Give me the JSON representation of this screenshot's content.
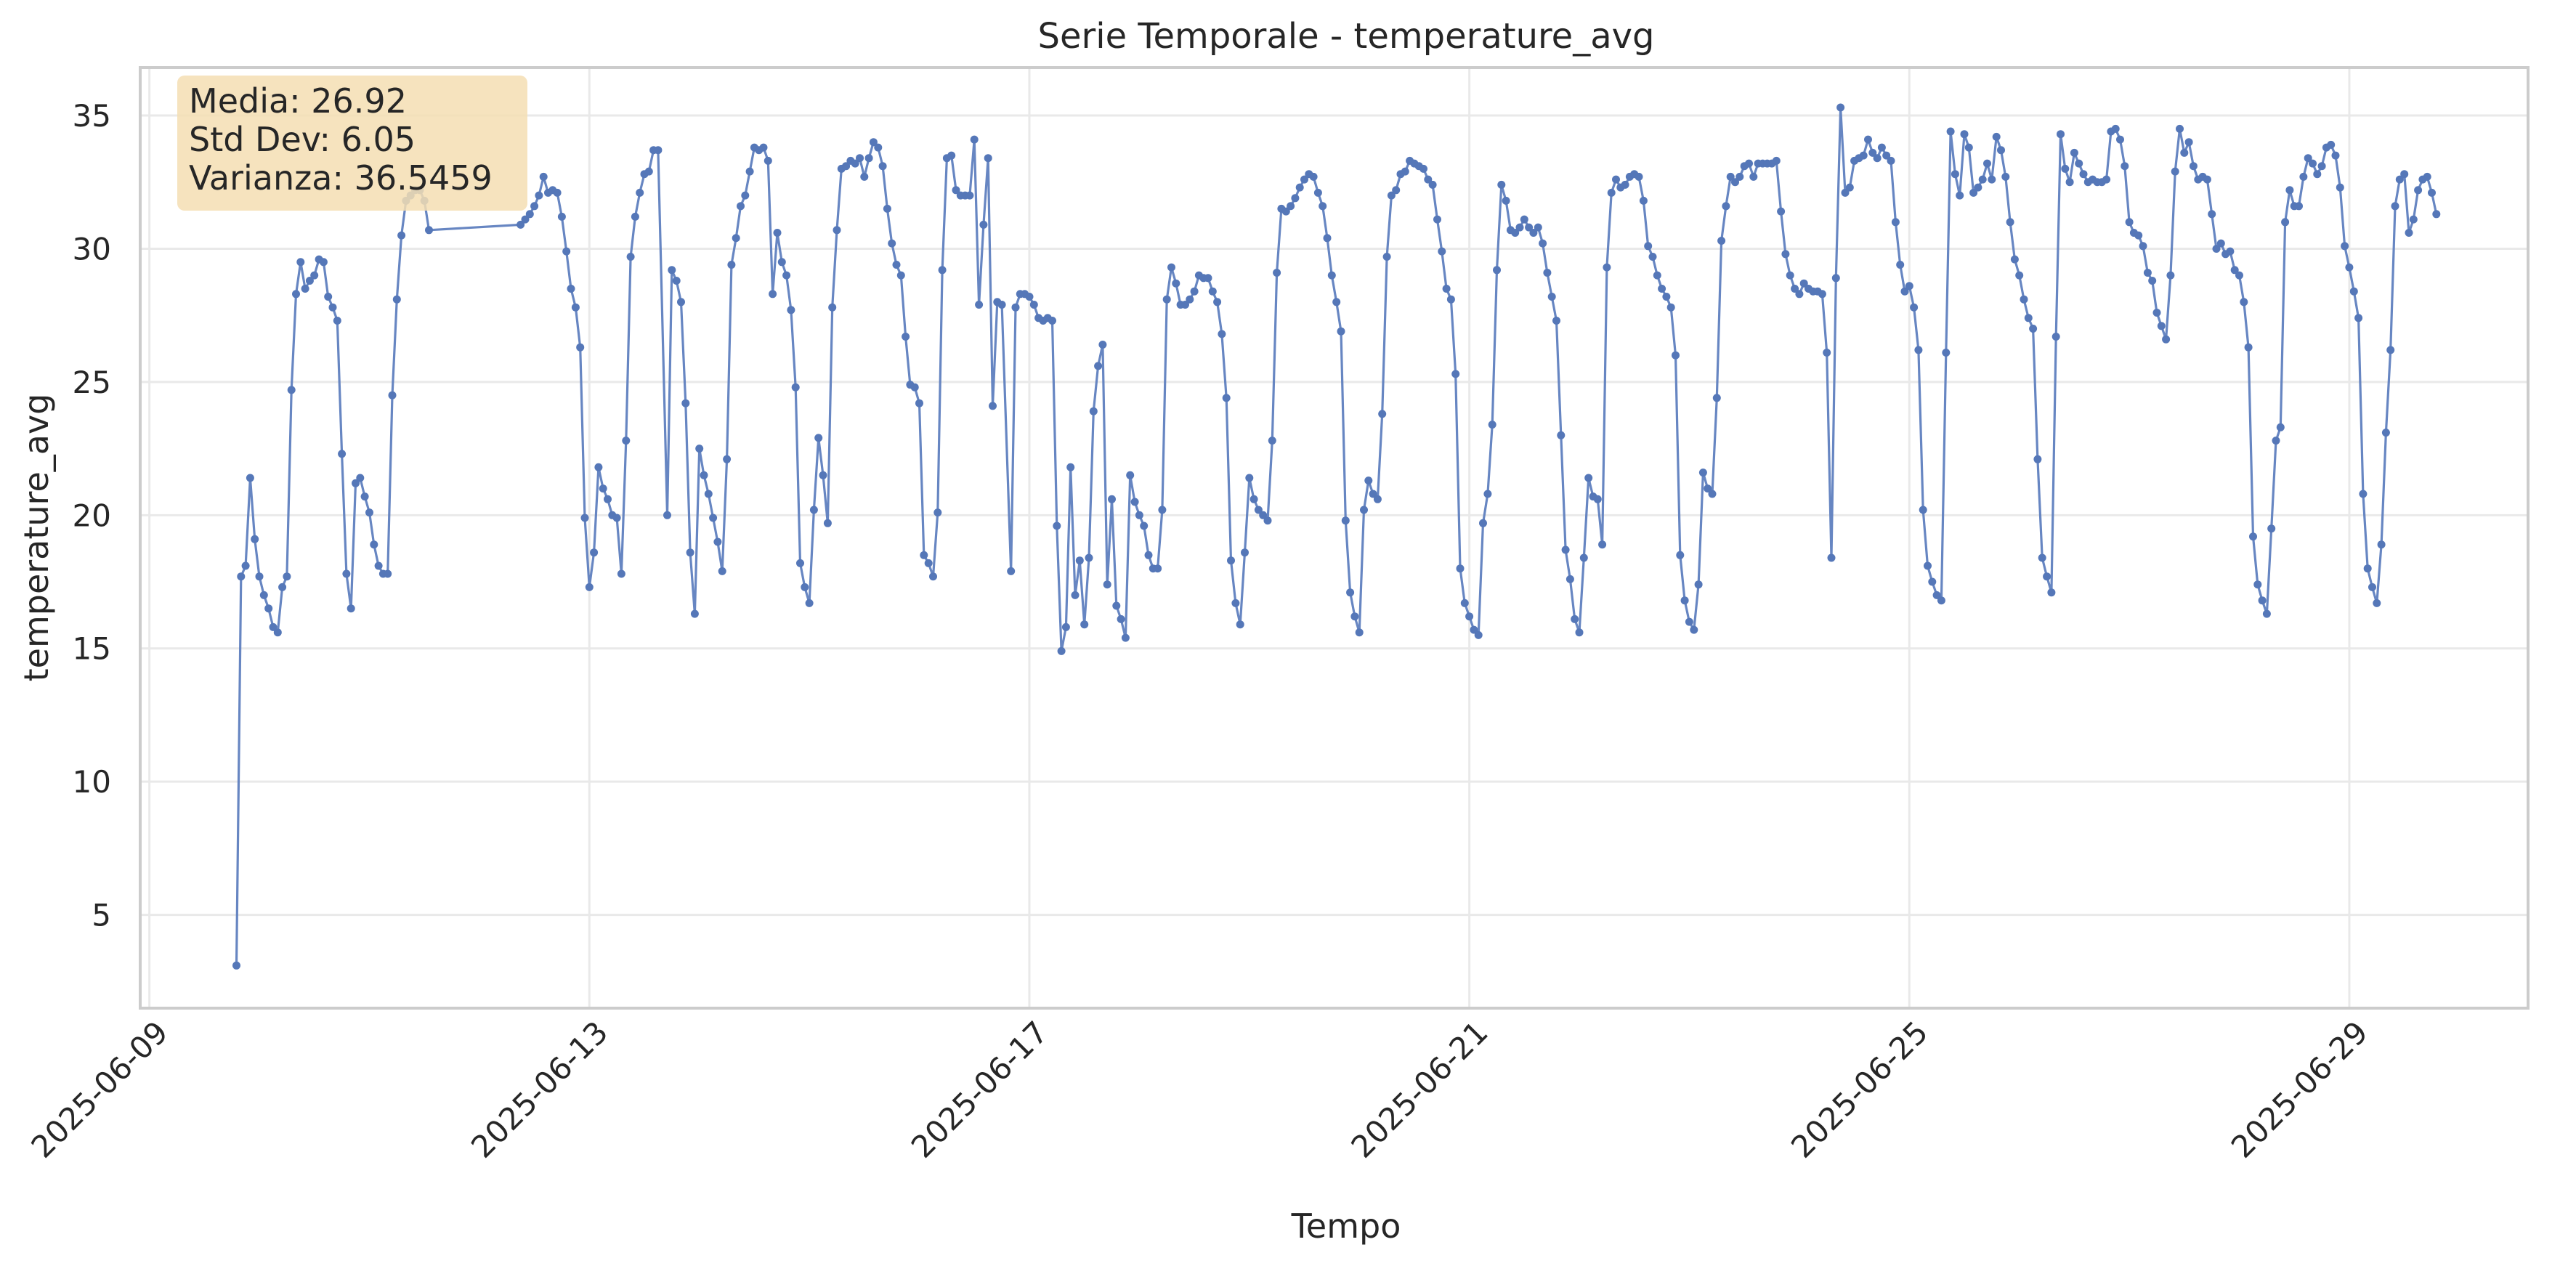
{
  "chart_data": {
    "type": "line",
    "title": "Serie Temporale - temperature_avg",
    "xlabel": "Tempo",
    "ylabel": "temperature_avg",
    "xlim": [
      "2025-06-08T22:00",
      "2025-06-30T15:00"
    ],
    "ylim": [
      1.5,
      36.8
    ],
    "x_ticks": [
      "2025-06-09",
      "2025-06-13",
      "2025-06-17",
      "2025-06-21",
      "2025-06-25",
      "2025-06-29"
    ],
    "y_ticks": [
      5,
      10,
      15,
      20,
      25,
      30,
      35
    ],
    "grid": true,
    "start_time": "2025-06-09T19:00",
    "interval_minutes": 60,
    "series": [
      {
        "name": "temperature_avg",
        "color": "#5577b8",
        "values": [
          3.1,
          17.7,
          18.1,
          21.4,
          19.1,
          17.7,
          17.0,
          16.5,
          15.8,
          15.6,
          17.3,
          17.7,
          24.7,
          28.3,
          29.5,
          28.5,
          28.8,
          29.0,
          29.6,
          29.5,
          28.2,
          27.8,
          27.3,
          22.3,
          17.8,
          16.5,
          21.2,
          21.4,
          20.7,
          20.1,
          18.9,
          18.1,
          17.8,
          17.8,
          24.5,
          28.1,
          30.5,
          31.8,
          32.0,
          32.2,
          32.2,
          31.8,
          30.7,
          null,
          null,
          null,
          null,
          null,
          null,
          null,
          null,
          null,
          null,
          null,
          null,
          null,
          null,
          null,
          null,
          null,
          null,
          null,
          30.9,
          31.1,
          31.3,
          31.6,
          32.0,
          32.7,
          32.1,
          32.2,
          32.1,
          31.2,
          29.9,
          28.5,
          27.8,
          26.3,
          19.9,
          17.3,
          18.6,
          21.8,
          21.0,
          20.6,
          20.0,
          19.9,
          17.8,
          22.8,
          29.7,
          31.2,
          32.1,
          32.8,
          32.9,
          33.7,
          33.7,
          null,
          20.0,
          29.2,
          28.8,
          28.0,
          24.2,
          18.6,
          16.3,
          22.5,
          21.5,
          20.8,
          19.9,
          19.0,
          17.9,
          22.1,
          29.4,
          30.4,
          31.6,
          32.0,
          32.9,
          33.8,
          33.7,
          33.8,
          33.3,
          28.3,
          30.6,
          29.5,
          29.0,
          27.7,
          24.8,
          18.2,
          17.3,
          16.7,
          20.2,
          22.9,
          21.5,
          19.7,
          27.8,
          30.7,
          33.0,
          33.1,
          33.3,
          33.2,
          33.4,
          32.7,
          33.4,
          34.0,
          33.8,
          33.1,
          31.5,
          30.2,
          29.4,
          29.0,
          26.7,
          24.9,
          24.8,
          24.2,
          18.5,
          18.2,
          17.7,
          20.1,
          29.2,
          33.4,
          33.5,
          32.2,
          32.0,
          32.0,
          32.0,
          34.1,
          27.9,
          30.9,
          33.4,
          24.1,
          28.0,
          27.9,
          null,
          17.9,
          27.8,
          28.3,
          28.3,
          28.2,
          27.9,
          27.4,
          27.3,
          27.4,
          27.3,
          19.6,
          14.9,
          15.8,
          21.8,
          17.0,
          18.3,
          15.9,
          18.4,
          23.9,
          25.6,
          26.4,
          17.4,
          20.6,
          16.6,
          16.1,
          15.4,
          21.5,
          20.5,
          20.0,
          19.6,
          18.5,
          18.0,
          18.0,
          20.2,
          28.1,
          29.3,
          28.7,
          27.9,
          27.9,
          28.1,
          28.4,
          29.0,
          28.9,
          28.9,
          28.4,
          28.0,
          26.8,
          24.4,
          18.3,
          16.7,
          15.9,
          18.6,
          21.4,
          20.6,
          20.2,
          20.0,
          19.8,
          22.8,
          29.1,
          31.5,
          31.4,
          31.6,
          31.9,
          32.3,
          32.6,
          32.8,
          32.7,
          32.1,
          31.6,
          30.4,
          29.0,
          28.0,
          26.9,
          19.8,
          17.1,
          16.2,
          15.6,
          20.2,
          21.3,
          20.8,
          20.6,
          23.8,
          29.7,
          32.0,
          32.2,
          32.8,
          32.9,
          33.3,
          33.2,
          33.1,
          33.0,
          32.6,
          32.4,
          31.1,
          29.9,
          28.5,
          28.1,
          25.3,
          18.0,
          16.7,
          16.2,
          15.7,
          15.5,
          19.7,
          20.8,
          23.4,
          29.2,
          32.4,
          31.8,
          30.7,
          30.6,
          30.8,
          31.1,
          30.8,
          30.6,
          30.8,
          30.2,
          29.1,
          28.2,
          27.3,
          23.0,
          18.7,
          17.6,
          16.1,
          15.6,
          18.4,
          21.4,
          20.7,
          20.6,
          18.9,
          29.3,
          32.1,
          32.6,
          32.3,
          32.4,
          32.7,
          32.8,
          32.7,
          31.8,
          30.1,
          29.7,
          29.0,
          28.5,
          28.2,
          27.8,
          26.0,
          18.5,
          16.8,
          16.0,
          15.7,
          17.4,
          21.6,
          21.0,
          20.8,
          24.4,
          30.3,
          31.6,
          32.7,
          32.5,
          32.7,
          33.1,
          33.2,
          32.7,
          33.2,
          33.2,
          33.2,
          33.2,
          33.3,
          31.4,
          29.8,
          29.0,
          28.5,
          28.3,
          28.7,
          28.5,
          28.4,
          28.4,
          28.3,
          26.1,
          18.4,
          28.9,
          35.3,
          32.1,
          32.3,
          33.3,
          33.4,
          33.5,
          34.1,
          33.6,
          33.4,
          33.8,
          33.5,
          33.3,
          31.0,
          29.4,
          28.4,
          28.6,
          27.8,
          26.2,
          20.2,
          18.1,
          17.5,
          17.0,
          16.8,
          26.1,
          34.4,
          32.8,
          32.0,
          34.3,
          33.8,
          32.1,
          32.3,
          32.6,
          33.2,
          32.6,
          34.2,
          33.7,
          32.7,
          31.0,
          29.6,
          29.0,
          28.1,
          27.4,
          27.0,
          22.1,
          18.4,
          17.7,
          17.1,
          26.7,
          34.3,
          33.0,
          32.5,
          33.6,
          33.2,
          32.8,
          32.5,
          32.6,
          32.5,
          32.5,
          32.6,
          34.4,
          34.5,
          34.1,
          33.1,
          31.0,
          30.6,
          30.5,
          30.1,
          29.1,
          28.8,
          27.6,
          27.1,
          26.6,
          29.0,
          32.9,
          34.5,
          33.6,
          34.0,
          33.1,
          32.6,
          32.7,
          32.6,
          31.3,
          30.0,
          30.2,
          29.8,
          29.9,
          29.2,
          29.0,
          28.0,
          26.3,
          19.2,
          17.4,
          16.8,
          16.3,
          19.5,
          22.8,
          23.3,
          31.0,
          32.2,
          31.6,
          31.6,
          32.7,
          33.4,
          33.2,
          32.8,
          33.1,
          33.8,
          33.9,
          33.5,
          32.3,
          30.1,
          29.3,
          28.4,
          27.4,
          20.8,
          18.0,
          17.3,
          16.7,
          18.9,
          23.1,
          26.2,
          31.6,
          32.6,
          32.8,
          30.6,
          31.1,
          32.2,
          32.6,
          32.7,
          32.1,
          31.3
        ]
      }
    ],
    "stats": {
      "lines": [
        "Media: 26.92",
        "Std Dev: 6.05",
        "Varianza: 36.5459"
      ]
    }
  }
}
